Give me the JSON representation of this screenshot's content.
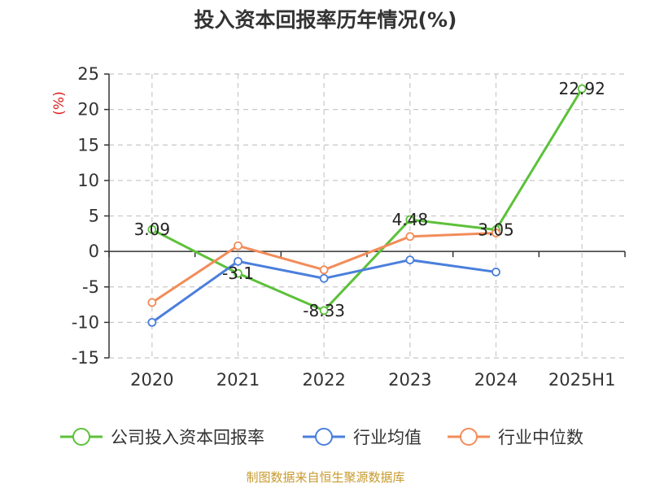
{
  "chart_data": {
    "type": "line",
    "title": "投入资本回报率历年情况(%)",
    "ylabel": "(%)",
    "ylim": [
      -15,
      25
    ],
    "yticks": [
      -15,
      -10,
      -5,
      0,
      5,
      10,
      15,
      20,
      25
    ],
    "categories": [
      "2020",
      "2021",
      "2022",
      "2023",
      "2024",
      "2025H1"
    ],
    "grid": true,
    "legend": "bottom",
    "series": [
      {
        "name": "公司投入资本回报率",
        "color": "#5cc13a",
        "values": [
          3.09,
          -3.1,
          -8.33,
          4.48,
          3.05,
          22.92
        ],
        "labels": [
          "3.09",
          "-3.1",
          "-8.33",
          "4.48",
          "3.05",
          "22.92"
        ]
      },
      {
        "name": "行业均值",
        "color": "#4a7fdc",
        "values": [
          -10.0,
          -1.4,
          -3.8,
          -1.2,
          -2.9,
          null
        ]
      },
      {
        "name": "行业中位数",
        "color": "#f28c5a",
        "values": [
          -7.2,
          0.8,
          -2.6,
          2.1,
          2.6,
          null
        ]
      }
    ]
  },
  "source": "制图数据来自恒生聚源数据库"
}
